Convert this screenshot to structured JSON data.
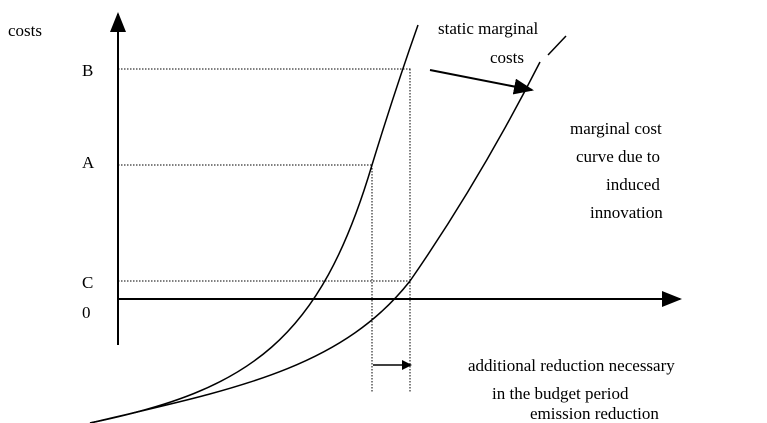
{
  "axes": {
    "y_label": "costs",
    "x_label": "emission reduction"
  },
  "levels": [
    "B",
    "A",
    "C",
    "0"
  ],
  "curves": {
    "static": [
      "static marginal",
      "costs"
    ],
    "induced": [
      "marginal cost",
      "curve due to",
      "induced",
      "innovation"
    ]
  },
  "annotation": [
    "additional reduction necessary",
    "in the budget period"
  ]
}
